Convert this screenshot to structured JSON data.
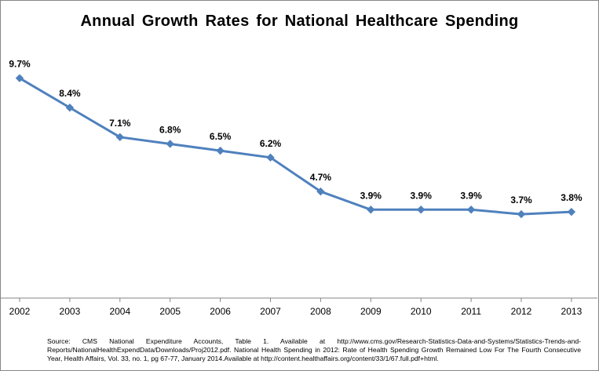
{
  "chart_data": {
    "type": "line",
    "title": "Annual Growth Rates for National Healthcare Spending",
    "categories": [
      "2002",
      "2003",
      "2004",
      "2005",
      "2006",
      "2007",
      "2008",
      "2009",
      "2010",
      "2011",
      "2012",
      "2013"
    ],
    "series": [
      {
        "values": [
          9.7,
          8.4,
          7.1,
          6.8,
          6.5,
          6.2,
          4.7,
          3.9,
          3.9,
          3.9,
          3.7,
          3.8
        ],
        "labels": [
          "9.7%",
          "8.4%",
          "7.1%",
          "6.8%",
          "6.5%",
          "6.2%",
          "4.7%",
          "3.9%",
          "3.9%",
          "3.9%",
          "3.7%",
          "3.8%"
        ],
        "color": "#4f81bd",
        "marker": "diamond"
      }
    ],
    "xlabel": "",
    "ylabel": "",
    "ylim": [
      0,
      10
    ],
    "grid": false,
    "legend": "none"
  },
  "source_note": "Source: CMS National Expenditure Accounts, Table 1. Available at http://www.cms.gov/Research-Statistics-Data-and-Systems/Statistics-Trends-and-Reports/NationalHealthExpendData/Downloads/Proj2012.pdf. National Health Spending in 2012: Rate of Health Spending Growth Remained Low For The Fourth Consecutive Year, Health Affairs, Vol. 33, no. 1, pg 67-77, January 2014.Available at http://content.healthaffairs.org/content/33/1/67.full.pdf+html."
}
